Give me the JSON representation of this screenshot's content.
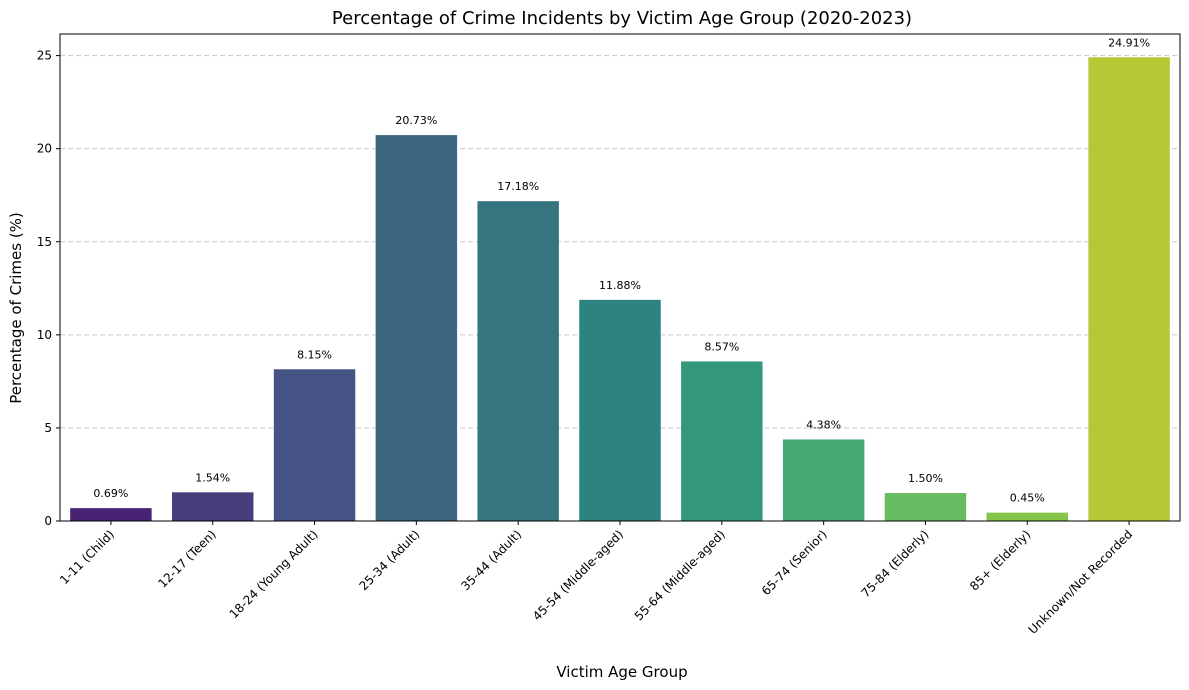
{
  "chart_data": {
    "type": "bar",
    "title": "Percentage of Crime Incidents by Victim Age Group (2020-2023)",
    "xlabel": "Victim Age Group",
    "ylabel": "Percentage of Crimes (%)",
    "categories": [
      "1-11 (Child)",
      "12-17 (Teen)",
      "18-24 (Young Adult)",
      "25-34 (Adult)",
      "35-44 (Adult)",
      "45-54 (Middle-aged)",
      "55-64 (Middle-aged)",
      "65-74 (Senior)",
      "75-84 (Elderly)",
      "85+ (Elderly)",
      "Unknown/Not Recorded"
    ],
    "values": [
      0.69,
      1.54,
      8.15,
      20.73,
      17.18,
      11.88,
      8.57,
      4.38,
      1.5,
      0.45,
      24.91
    ],
    "data_labels": [
      "0.69%",
      "1.54%",
      "8.15%",
      "20.73%",
      "17.18%",
      "11.88%",
      "8.57%",
      "4.38%",
      "1.50%",
      "0.45%",
      "24.91%"
    ],
    "colors": [
      "#482374",
      "#483d7b",
      "#455385",
      "#3e6580",
      "#357580",
      "#2c837f",
      "#32977b",
      "#48a874",
      "#67bb60",
      "#86c44a",
      "#b7c837"
    ],
    "ylim": [
      0,
      26.16
    ],
    "yticks": [
      0,
      5,
      10,
      15,
      20,
      25
    ],
    "grid": "y-dashed",
    "legend": "none"
  }
}
